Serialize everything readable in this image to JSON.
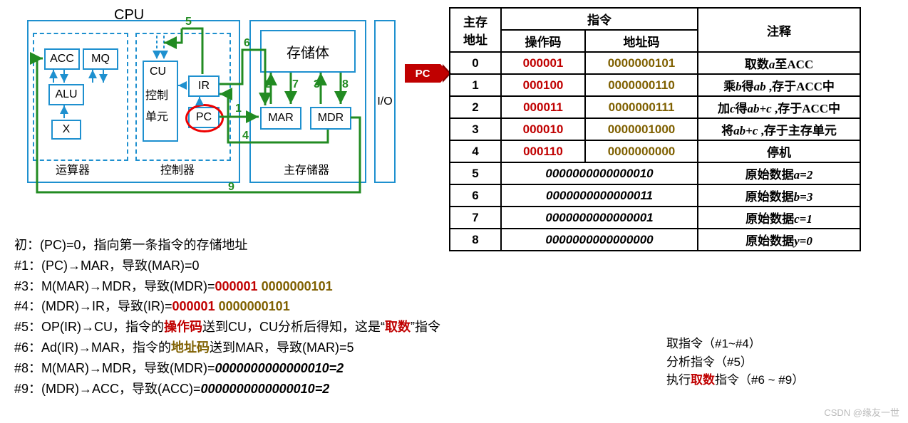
{
  "colors": {
    "border": "#1e90cf",
    "green": "#228B22",
    "red": "#c00000",
    "olive": "#7f6000",
    "black": "#000",
    "dash": "#1e90cf"
  },
  "cpu": {
    "title": "CPU",
    "acc": "ACC",
    "mq": "MQ",
    "alu": "ALU",
    "x": "X",
    "yunsuan": "运算器",
    "cu": "CU",
    "cu2": "控制",
    "cu3": "单元",
    "ir": "IR",
    "pc": "PC",
    "kongzhi": "控制器",
    "mem_title": "存储体",
    "mar": "MAR",
    "mdr": "MDR",
    "zhucun": "主存储器",
    "io": "I/O",
    "nums": {
      "1": "1",
      "2": "2",
      "3": "3",
      "4": "4",
      "5": "5",
      "6": "6",
      "7": "7",
      "8": "8",
      "9": "9"
    }
  },
  "pc_badge": "PC",
  "table": {
    "h_addr": "主存\n地址",
    "h_instr": "指令",
    "h_op": "操作码",
    "h_ac": "地址码",
    "h_note": "注释",
    "rows": [
      {
        "a": "0",
        "op": "000001",
        "ac": "0000000101",
        "note_pre": "取数",
        "v": "a",
        "note_post": "至ACC"
      },
      {
        "a": "1",
        "op": "000100",
        "ac": "0000000110",
        "note_pre": "乘",
        "v": "b",
        "mid": "得",
        "v2": "ab",
        "note_post": " ,存于ACC中"
      },
      {
        "a": "2",
        "op": "000011",
        "ac": "0000000111",
        "note_pre": "加",
        "v": "c",
        "mid": "得",
        "v2": "ab+c",
        "note_post": " ,存于ACC中"
      },
      {
        "a": "3",
        "op": "000010",
        "ac": "0000001000",
        "note_pre": "将",
        "v": "ab+c",
        "note_post": " ,存于主存单元"
      },
      {
        "a": "4",
        "op": "000110",
        "ac": "0000000000",
        "note_pre": "停机"
      },
      {
        "a": "5",
        "data": "0000000000000010",
        "note_pre": "原始数据",
        "v": "a=2"
      },
      {
        "a": "6",
        "data": "0000000000000011",
        "note_pre": "原始数据",
        "v": "b=3"
      },
      {
        "a": "7",
        "data": "0000000000000001",
        "note_pre": "原始数据",
        "v": "c=1"
      },
      {
        "a": "8",
        "data": "0000000000000000",
        "note_pre": "原始数据",
        "v": "y=0"
      }
    ]
  },
  "steps": {
    "l0": {
      "pre": "初：(PC)=0，指向第一条指令的存储地址"
    },
    "l1": {
      "pre": "#1：(PC)→MAR，导致(MAR)=0"
    },
    "l3": {
      "pre": "#3：M(MAR)→MDR，导致(MDR)=",
      "op": "000001 ",
      "ac": "0000000101"
    },
    "l4": {
      "pre": "#4：(MDR)→IR，导致(IR)=",
      "op": "000001 ",
      "ac": "0000000101"
    },
    "l5": {
      "a": "#5：OP(IR)→CU，指令的",
      "b": "操作码",
      "c": "送到CU，CU分析后得知，这是“",
      "d": "取数",
      "e": "”指令"
    },
    "l6": {
      "a": "#6：Ad(IR)→MAR，指令的",
      "b": "地址码",
      "c": "送到MAR，导致(MAR)=5"
    },
    "l8": {
      "a": "#8：M(MAR)→MDR，导致(MDR)=",
      "b": "0000000000000010=2"
    },
    "l9": {
      "a": "#9：(MDR)→ACC，导致(ACC)=",
      "b": "0000000000000010=2"
    }
  },
  "legend": {
    "a": "取指令（#1~#4）",
    "b": "分析指令（#5）",
    "c1": "执行",
    "c2": "取数",
    "c3": "指令（#6 ~ #9）"
  },
  "watermark": "CSDN @缘友一世"
}
